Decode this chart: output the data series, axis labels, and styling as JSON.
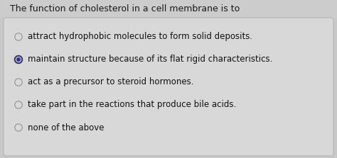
{
  "title": "The function of cholesterol in a cell membrane is to",
  "title_fontsize": 9.0,
  "title_color": "#1a1a1a",
  "bg_color": "#c8c8c8",
  "box_bg": "#d8d8d8",
  "box_edge": "#b0b0b0",
  "options": [
    {
      "text": "attract hydrophobic molecules to form solid deposits.",
      "selected": false
    },
    {
      "text": "maintain structure because of its flat rigid characteristics.",
      "selected": true
    },
    {
      "text": "act as a precursor to steroid hormones.",
      "selected": false
    },
    {
      "text": "take part in the reactions that produce bile acids.",
      "selected": false
    },
    {
      "text": "none of the above",
      "selected": false
    }
  ],
  "option_fontsize": 8.5,
  "option_color": "#111111",
  "radio_unselected_edge": "#999999",
  "radio_unselected_face": "#d8d8d8",
  "radio_selected_edge": "#333366",
  "radio_selected_face": "#333399",
  "radio_selected_outer_face": "#ffffff"
}
